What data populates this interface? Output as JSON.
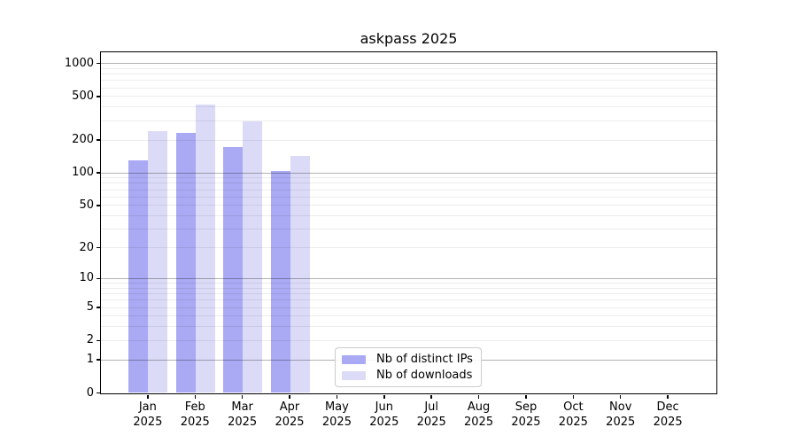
{
  "title": "askpass 2025",
  "chart_data": {
    "type": "bar",
    "title": "askpass 2025",
    "xlabel": "",
    "ylabel": "",
    "yscale": "log1p",
    "grid": true,
    "legend_position": "lower center",
    "categories": [
      "Jan 2025",
      "Feb 2025",
      "Mar 2025",
      "Apr 2025",
      "May 2025",
      "Jun 2025",
      "Jul 2025",
      "Aug 2025",
      "Sep 2025",
      "Oct 2025",
      "Nov 2025",
      "Dec 2025"
    ],
    "series": [
      {
        "name": "Nb of distinct IPs",
        "color": "#a9a9f4",
        "values": [
          130,
          230,
          170,
          103,
          null,
          null,
          null,
          null,
          null,
          null,
          null,
          null
        ]
      },
      {
        "name": "Nb of downloads",
        "color": "#dbdbf8",
        "values": [
          240,
          415,
          295,
          141,
          null,
          null,
          null,
          null,
          null,
          null,
          null,
          null
        ]
      }
    ],
    "yticks": [
      0,
      1,
      2,
      5,
      10,
      20,
      50,
      100,
      200,
      500,
      1000
    ],
    "ylim": [
      0,
      1254
    ]
  },
  "colors": {
    "background": "#ffffff",
    "axis": "#000000",
    "major_grid": "#b4b4b4",
    "minor_grid": "#ececec",
    "bar_distinct_ips": "#a9a9f4",
    "bar_downloads": "#dbdbf8"
  }
}
